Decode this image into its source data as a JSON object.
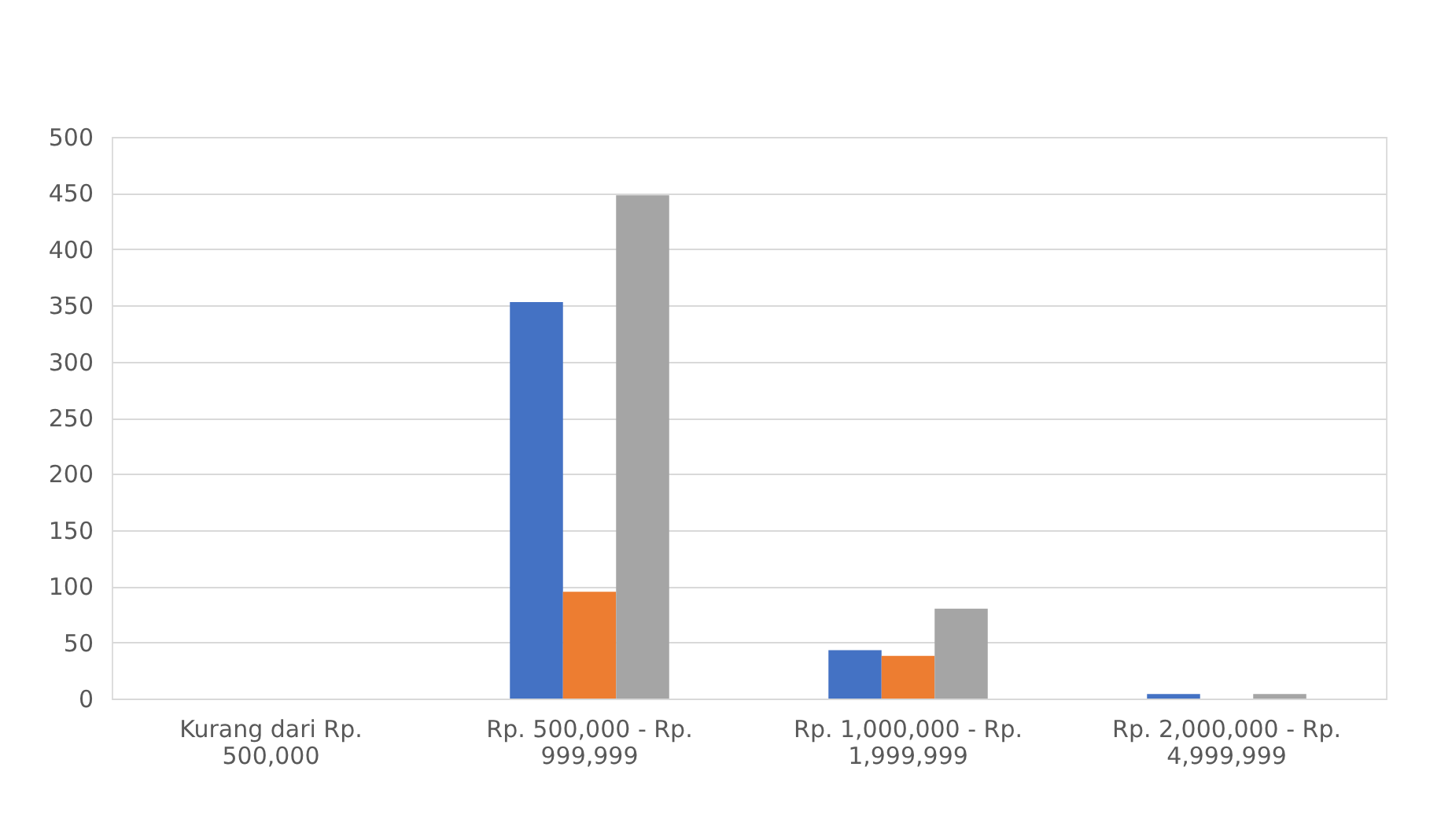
{
  "chart_data": {
    "type": "bar",
    "categories": [
      "Kurang dari Rp. 500,000",
      "Rp. 500,000 - Rp. 999,999",
      "Rp. 1,000,000 - Rp. 1,999,999",
      "Rp. 2,000,000 - Rp. 4,999,999"
    ],
    "series": [
      {
        "color": "#4472c4",
        "values": [
          0,
          353,
          43,
          4
        ]
      },
      {
        "color": "#ed7d31",
        "values": [
          0,
          95,
          38,
          0
        ]
      },
      {
        "color": "#a5a5a5",
        "values": [
          0,
          448,
          80,
          4
        ]
      }
    ],
    "ylim": [
      0,
      500
    ],
    "yticks": [
      0,
      50,
      100,
      150,
      200,
      250,
      300,
      350,
      400,
      450,
      500
    ],
    "grid": "y",
    "legend": false
  }
}
